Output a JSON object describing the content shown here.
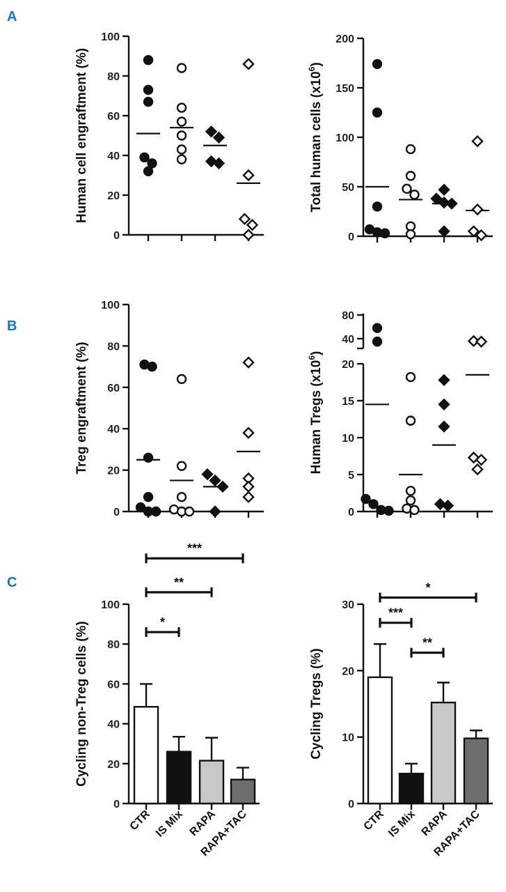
{
  "panel_labels": [
    "A",
    "B",
    "C"
  ],
  "colors": {
    "panel_letter": "#1d74b4",
    "ink": "#111111",
    "bar_ctr": "#ffffff",
    "bar_is_mix": "#111111",
    "bar_rapa": "#c8c8c8",
    "bar_rapa_tac": "#6e6e6e"
  },
  "chart_data": [
    {
      "id": "A-left",
      "panel": "A",
      "type": "scatter",
      "ylabel": "Human cell engraftment (%)",
      "ylim": [
        0,
        100
      ],
      "yticks": [
        0,
        20,
        40,
        60,
        80,
        100
      ],
      "groups": [
        {
          "name": "CTR",
          "marker": "filled-circle",
          "values": [
            88,
            73,
            67,
            39,
            36,
            32
          ],
          "mean": 51
        },
        {
          "name": "IS Mix",
          "marker": "open-circle",
          "values": [
            84,
            64,
            57,
            50,
            43,
            38
          ],
          "mean": 54
        },
        {
          "name": "RAPA",
          "marker": "filled-diamond",
          "values": [
            52,
            49,
            37,
            36
          ],
          "mean": 45
        },
        {
          "name": "RAPA+TAC",
          "marker": "open-diamond",
          "values": [
            86,
            30,
            8,
            5,
            0
          ],
          "mean": 26
        }
      ]
    },
    {
      "id": "A-right",
      "panel": "A",
      "type": "scatter",
      "ylabel": "Total human cells (x10",
      "ylabel_sup": "6",
      "ylabel_end": ")",
      "ylim": [
        0,
        200
      ],
      "yticks": [
        0,
        50,
        100,
        150,
        200
      ],
      "groups": [
        {
          "name": "CTR",
          "marker": "filled-circle",
          "values": [
            174,
            125,
            30,
            7,
            4,
            3
          ],
          "mean": 50
        },
        {
          "name": "IS Mix",
          "marker": "open-circle",
          "values": [
            88,
            61,
            48,
            42,
            10,
            2
          ],
          "mean": 37
        },
        {
          "name": "RAPA",
          "marker": "filled-diamond",
          "values": [
            47,
            38,
            34,
            33,
            5
          ],
          "mean": 33
        },
        {
          "name": "RAPA+TAC",
          "marker": "open-diamond",
          "values": [
            96,
            27,
            5,
            1
          ],
          "mean": 26
        }
      ]
    },
    {
      "id": "B-left",
      "panel": "B",
      "type": "scatter",
      "ylabel": "Treg engraftment (%)",
      "ylim": [
        0,
        100
      ],
      "yticks": [
        0,
        20,
        40,
        60,
        80,
        100
      ],
      "groups": [
        {
          "name": "CTR",
          "marker": "filled-circle",
          "values": [
            71,
            70,
            26,
            7,
            2,
            0,
            0
          ],
          "mean": 25
        },
        {
          "name": "IS Mix",
          "marker": "open-circle",
          "values": [
            64,
            22,
            7,
            1,
            0,
            0
          ],
          "mean": 15
        },
        {
          "name": "RAPA",
          "marker": "filled-diamond",
          "values": [
            18,
            15,
            12,
            0
          ],
          "mean": 12
        },
        {
          "name": "RAPA+TAC",
          "marker": "open-diamond",
          "values": [
            72,
            38,
            16,
            12,
            7
          ],
          "mean": 29
        }
      ]
    },
    {
      "id": "B-right",
      "panel": "B",
      "type": "scatter",
      "ylabel": "Human Tregs (x10",
      "ylabel_sup": "6",
      "ylabel_end": ")",
      "ylim": [
        0,
        80
      ],
      "yticks": [
        0,
        5,
        10,
        15,
        20,
        40,
        80
      ],
      "axis_break": [
        20,
        30
      ],
      "groups": [
        {
          "name": "CTR",
          "marker": "filled-circle",
          "values": [
            58,
            35,
            1.7,
            1,
            0.2,
            0.1
          ],
          "mean": 14.5
        },
        {
          "name": "IS Mix",
          "marker": "open-circle",
          "values": [
            18.2,
            12.3,
            2.8,
            1.5,
            0.4,
            0.2
          ],
          "mean": 5
        },
        {
          "name": "RAPA",
          "marker": "filled-diamond",
          "values": [
            17.8,
            14.5,
            11.5,
            1,
            0.8
          ],
          "mean": 9
        },
        {
          "name": "RAPA+TAC",
          "marker": "open-diamond",
          "values": [
            36,
            35,
            7.3,
            7,
            5.7
          ],
          "mean": 18.5
        }
      ]
    },
    {
      "id": "C-left",
      "panel": "C",
      "type": "bar",
      "ylabel": "Cycling non-Treg cells (%)",
      "ylim": [
        0,
        100
      ],
      "yticks": [
        0,
        20,
        40,
        60,
        80,
        100
      ],
      "categories": [
        "CTR",
        "IS Mix",
        "RAPA",
        "RAPA+TAC"
      ],
      "values": [
        48.5,
        26,
        21.5,
        12
      ],
      "errors": [
        11.5,
        7.5,
        11.5,
        6
      ],
      "significance": [
        {
          "from": 0,
          "to": 1,
          "label": "*",
          "y": 86
        },
        {
          "from": 0,
          "to": 2,
          "label": "**",
          "y": 106
        },
        {
          "from": 0,
          "to": 3,
          "label": "***",
          "y": 123
        }
      ]
    },
    {
      "id": "C-right",
      "panel": "C",
      "type": "bar",
      "ylabel": "Cycling Tregs (%)",
      "ylim": [
        0,
        30
      ],
      "yticks": [
        0,
        10,
        20,
        30
      ],
      "categories": [
        "CTR",
        "IS Mix",
        "RAPA",
        "RAPA+TAC"
      ],
      "values": [
        19,
        4.5,
        15.2,
        9.8
      ],
      "errors": [
        5,
        1.5,
        3,
        1.2
      ],
      "significance": [
        {
          "from": 0,
          "to": 1,
          "label": "***",
          "y": 27.2
        },
        {
          "from": 1,
          "to": 2,
          "label": "**",
          "y": 22.7
        },
        {
          "from": 0,
          "to": 3,
          "label": "*",
          "y": 31
        }
      ]
    }
  ]
}
